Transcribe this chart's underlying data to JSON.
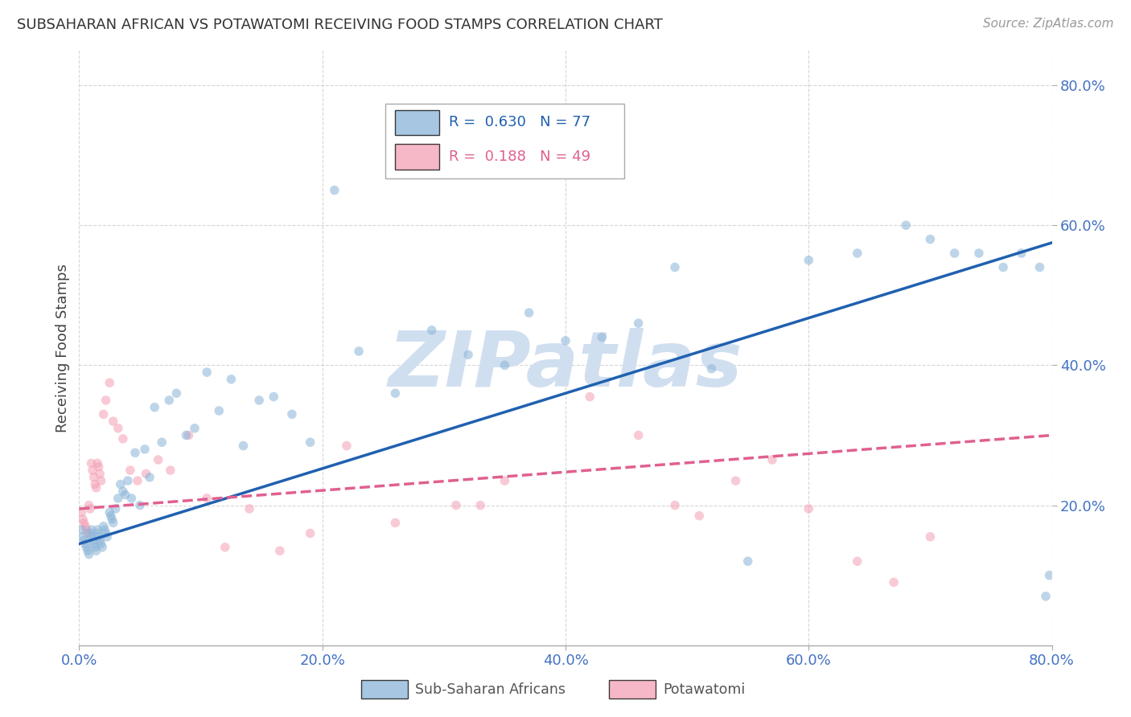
{
  "title": "SUBSAHARAN AFRICAN VS POTAWATOMI RECEIVING FOOD STAMPS CORRELATION CHART",
  "source": "Source: ZipAtlas.com",
  "ylabel": "Receiving Food Stamps",
  "xlim": [
    0.0,
    0.8
  ],
  "ylim": [
    0.0,
    0.85
  ],
  "xticks": [
    0.0,
    0.2,
    0.4,
    0.6,
    0.8
  ],
  "yticks": [
    0.2,
    0.4,
    0.6,
    0.8
  ],
  "xticklabels": [
    "0.0%",
    "20.0%",
    "40.0%",
    "60.0%",
    "80.0%"
  ],
  "yticklabels": [
    "20.0%",
    "40.0%",
    "60.0%",
    "80.0%"
  ],
  "blue_R": 0.63,
  "blue_N": 77,
  "pink_R": 0.188,
  "pink_N": 49,
  "blue_color": "#8ab4d8",
  "pink_color": "#f4a0b5",
  "blue_line_color": "#2060b0",
  "pink_line_color": "#e06090",
  "watermark": "ZIPatlas",
  "watermark_color": "#d0dff0",
  "background_color": "#ffffff",
  "grid_color": "#cccccc",
  "tick_label_color": "#4472c4",
  "blue_scatter_x": [
    0.002,
    0.003,
    0.004,
    0.005,
    0.006,
    0.007,
    0.008,
    0.009,
    0.01,
    0.01,
    0.011,
    0.012,
    0.013,
    0.014,
    0.015,
    0.015,
    0.016,
    0.017,
    0.018,
    0.019,
    0.02,
    0.021,
    0.022,
    0.023,
    0.025,
    0.026,
    0.027,
    0.028,
    0.03,
    0.032,
    0.034,
    0.036,
    0.038,
    0.04,
    0.043,
    0.046,
    0.05,
    0.054,
    0.058,
    0.062,
    0.068,
    0.074,
    0.08,
    0.088,
    0.095,
    0.105,
    0.115,
    0.125,
    0.135,
    0.148,
    0.16,
    0.175,
    0.19,
    0.21,
    0.23,
    0.26,
    0.29,
    0.32,
    0.35,
    0.37,
    0.4,
    0.43,
    0.46,
    0.49,
    0.52,
    0.55,
    0.6,
    0.64,
    0.68,
    0.7,
    0.72,
    0.74,
    0.76,
    0.775,
    0.79,
    0.795,
    0.798
  ],
  "blue_scatter_y": [
    0.165,
    0.155,
    0.15,
    0.145,
    0.14,
    0.135,
    0.13,
    0.16,
    0.165,
    0.155,
    0.15,
    0.145,
    0.14,
    0.135,
    0.165,
    0.16,
    0.155,
    0.15,
    0.145,
    0.14,
    0.17,
    0.165,
    0.16,
    0.155,
    0.19,
    0.185,
    0.18,
    0.175,
    0.195,
    0.21,
    0.23,
    0.22,
    0.215,
    0.235,
    0.21,
    0.275,
    0.2,
    0.28,
    0.24,
    0.34,
    0.29,
    0.35,
    0.36,
    0.3,
    0.31,
    0.39,
    0.335,
    0.38,
    0.285,
    0.35,
    0.355,
    0.33,
    0.29,
    0.65,
    0.42,
    0.36,
    0.45,
    0.415,
    0.4,
    0.475,
    0.435,
    0.44,
    0.46,
    0.54,
    0.395,
    0.12,
    0.55,
    0.56,
    0.6,
    0.58,
    0.56,
    0.56,
    0.54,
    0.56,
    0.54,
    0.07,
    0.1
  ],
  "pink_scatter_x": [
    0.002,
    0.003,
    0.004,
    0.005,
    0.006,
    0.007,
    0.008,
    0.009,
    0.01,
    0.011,
    0.012,
    0.013,
    0.014,
    0.015,
    0.016,
    0.017,
    0.018,
    0.02,
    0.022,
    0.025,
    0.028,
    0.032,
    0.036,
    0.042,
    0.048,
    0.055,
    0.065,
    0.075,
    0.09,
    0.105,
    0.12,
    0.14,
    0.165,
    0.19,
    0.22,
    0.26,
    0.31,
    0.33,
    0.35,
    0.42,
    0.46,
    0.49,
    0.51,
    0.54,
    0.57,
    0.6,
    0.64,
    0.67,
    0.7
  ],
  "pink_scatter_y": [
    0.19,
    0.18,
    0.175,
    0.17,
    0.165,
    0.16,
    0.2,
    0.195,
    0.26,
    0.25,
    0.24,
    0.23,
    0.225,
    0.26,
    0.255,
    0.245,
    0.235,
    0.33,
    0.35,
    0.375,
    0.32,
    0.31,
    0.295,
    0.25,
    0.235,
    0.245,
    0.265,
    0.25,
    0.3,
    0.21,
    0.14,
    0.195,
    0.135,
    0.16,
    0.285,
    0.175,
    0.2,
    0.2,
    0.235,
    0.355,
    0.3,
    0.2,
    0.185,
    0.235,
    0.265,
    0.195,
    0.12,
    0.09,
    0.155
  ],
  "blue_line_x": [
    0.0,
    0.8
  ],
  "blue_line_y": [
    0.145,
    0.575
  ],
  "pink_line_x": [
    0.0,
    0.8
  ],
  "pink_line_y": [
    0.195,
    0.3
  ],
  "marker_size": 70,
  "marker_alpha": 0.55,
  "line_width": 2.5
}
